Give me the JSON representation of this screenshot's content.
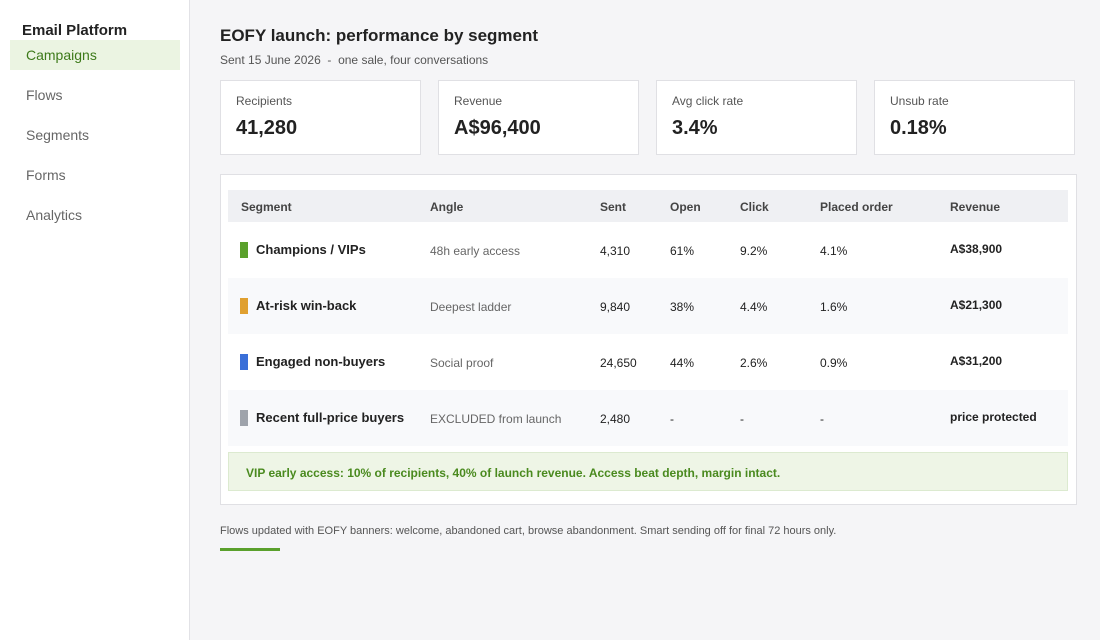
{
  "sidebar": {
    "title": "Email Platform",
    "nav": [
      "Campaigns",
      "Flows",
      "Segments",
      "Forms",
      "Analytics"
    ]
  },
  "header": {
    "title": "EOFY launch: performance by segment",
    "subtitle": "Sent 15 June 2026  -  one sale, four conversations"
  },
  "kpis": [
    {
      "label": "Recipients",
      "value": "41,280"
    },
    {
      "label": "Revenue",
      "value": "A$96,400"
    },
    {
      "label": "Avg click rate",
      "value": "3.4%"
    },
    {
      "label": "Unsub rate",
      "value": "0.18%"
    }
  ],
  "table": {
    "columns": [
      "Segment",
      "Angle",
      "Sent",
      "Open",
      "Click",
      "Placed order",
      "Revenue"
    ],
    "rows": [
      [
        "Champions / VIPs",
        "48h early access",
        "4,310",
        "61%",
        "9.2%",
        "4.1%",
        "A$38,900"
      ],
      [
        "At-risk win-back",
        "Deepest ladder",
        "9,840",
        "38%",
        "4.4%",
        "1.6%",
        "A$21,300"
      ],
      [
        "Engaged non-buyers",
        "Social proof",
        "24,650",
        "44%",
        "2.6%",
        "0.9%",
        "A$31,200"
      ],
      [
        "Recent full-price buyers",
        "EXCLUDED from launch",
        "2,480",
        "-",
        "-",
        "-",
        "price protected"
      ]
    ]
  },
  "callout": "VIP early access: 10% of recipients, 40% of launch revenue. Access beat depth, margin intact.",
  "footer": "Flows updated with EOFY banners: welcome, abandoned cart, browse abandonment. Smart sending off for final 72 hours only."
}
